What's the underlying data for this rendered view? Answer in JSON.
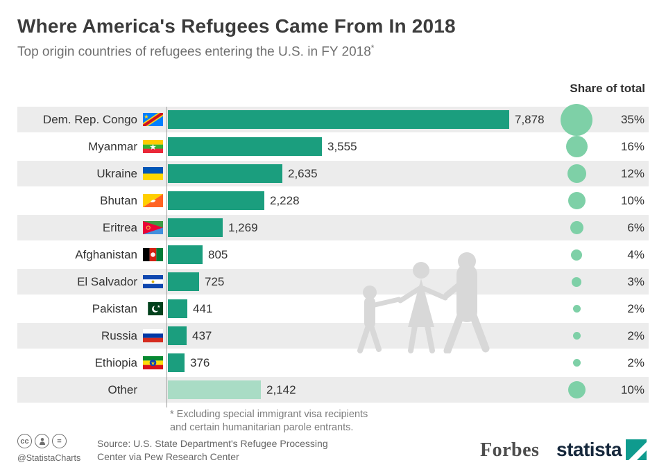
{
  "chart_data": {
    "type": "bar",
    "orientation": "horizontal",
    "title": "Where America's Refugees Came From In 2018",
    "subtitle": "Top origin countries of refugees entering the U.S. in FY 2018",
    "footnote_marker": "*",
    "share_header": "Share of total",
    "categories": [
      "Dem. Rep. Congo",
      "Myanmar",
      "Ukraine",
      "Bhutan",
      "Eritrea",
      "Afghanistan",
      "El Salvador",
      "Pakistan",
      "Russia",
      "Ethiopia",
      "Other"
    ],
    "values": [
      7878,
      3555,
      2635,
      2228,
      1269,
      805,
      725,
      441,
      437,
      376,
      2142
    ],
    "value_labels": [
      "7,878",
      "3,555",
      "2,635",
      "2,228",
      "1,269",
      "805",
      "725",
      "441",
      "437",
      "376",
      "2,142"
    ],
    "share_percent": [
      35,
      16,
      12,
      10,
      6,
      4,
      3,
      2,
      2,
      2,
      10
    ],
    "share_labels": [
      "35%",
      "16%",
      "12%",
      "10%",
      "6%",
      "4%",
      "3%",
      "2%",
      "2%",
      "2%",
      "10%"
    ],
    "flags": [
      "cd",
      "mm",
      "ua",
      "bt",
      "er",
      "af",
      "sv",
      "pk",
      "ru",
      "et",
      null
    ],
    "xmax": 8000,
    "bar_color": "#1b9e7e",
    "other_bar_color": "#a9dcc5",
    "circle_color": "#7ed0a7",
    "grid": false,
    "legend": false
  },
  "footer": {
    "footnote_line1": "* Excluding special immigrant visa recipients",
    "footnote_line2": "and certain humanitarian parole entrants.",
    "source_line1": "Source: U.S. State Department's Refugee Processing",
    "source_line2": "Center via Pew Research Center",
    "credit": "@StatistaCharts",
    "license_cc": "cc",
    "license_nd": "=",
    "brand_forbes": "Forbes",
    "brand_statista": "statista"
  }
}
